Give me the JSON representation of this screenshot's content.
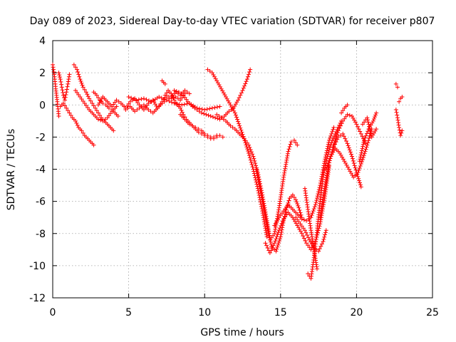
{
  "chart_data": {
    "type": "scatter",
    "title": "Day 089 of 2023, Sidereal Day-to-day VTEC variation (SDTVAR) for receiver p807",
    "xlabel": "GPS time / hours",
    "ylabel": "SDTVAR / TECUs",
    "xlim": [
      0,
      25
    ],
    "ylim": [
      -12,
      4
    ],
    "xticks": [
      0,
      5,
      10,
      15,
      20,
      25
    ],
    "yticks": [
      -12,
      -10,
      -8,
      -6,
      -4,
      -2,
      0,
      2,
      4
    ],
    "grid": true,
    "legend": "none",
    "marker": "plus",
    "color": "#ff0000",
    "tracks": [
      {
        "x": [
          0.0,
          0.1,
          0.2,
          0.3,
          0.4
        ],
        "y": [
          2.5,
          1.9,
          1.0,
          0.2,
          -0.7
        ]
      },
      {
        "x": [
          0.4,
          0.5,
          0.6,
          0.7,
          0.8,
          0.9,
          1.0,
          1.1
        ],
        "y": [
          2.0,
          1.6,
          1.1,
          0.6,
          0.3,
          0.8,
          1.3,
          1.9
        ]
      },
      {
        "x": [
          0.5,
          0.7,
          0.9,
          1.1,
          1.3,
          1.5,
          1.7,
          1.9,
          2.1,
          2.3,
          2.5,
          2.7
        ],
        "y": [
          -0.1,
          0.1,
          -0.2,
          -0.5,
          -0.8,
          -1.0,
          -1.4,
          -1.6,
          -1.9,
          -2.1,
          -2.3,
          -2.5
        ]
      },
      {
        "x": [
          1.4,
          1.6,
          1.8,
          2.0,
          2.2,
          2.4,
          2.6,
          2.8,
          3.0,
          3.2,
          3.4,
          3.6,
          3.8,
          4.0
        ],
        "y": [
          2.5,
          2.2,
          1.6,
          1.1,
          0.8,
          0.4,
          0.1,
          -0.2,
          -0.5,
          -0.8,
          -1.0,
          -1.2,
          -1.4,
          -1.6
        ]
      },
      {
        "x": [
          1.5,
          1.8,
          2.1,
          2.4,
          2.7,
          3.0,
          3.3,
          3.6,
          3.9,
          4.2
        ],
        "y": [
          0.9,
          0.5,
          0.1,
          -0.3,
          -0.6,
          -0.9,
          -1.0,
          -0.8,
          -0.4,
          -0.1
        ]
      },
      {
        "x": [
          2.7,
          2.9,
          3.1,
          3.3,
          3.5,
          3.7,
          3.9,
          4.1,
          4.3
        ],
        "y": [
          0.8,
          0.6,
          0.3,
          0.1,
          0.0,
          -0.2,
          -0.3,
          -0.5,
          -0.7
        ]
      },
      {
        "x": [
          3.0,
          3.3,
          3.6,
          3.9,
          4.2,
          4.5,
          4.8,
          5.1,
          5.4,
          5.7,
          6.0,
          6.3,
          6.6,
          6.9,
          7.2,
          7.5,
          7.8,
          8.1,
          8.4,
          8.7
        ],
        "y": [
          0.0,
          0.5,
          0.2,
          -0.1,
          0.3,
          0.1,
          -0.2,
          0.2,
          0.4,
          0.0,
          -0.3,
          0.1,
          0.3,
          -0.2,
          0.2,
          0.6,
          0.4,
          0.5,
          0.3,
          0.7
        ]
      },
      {
        "x": [
          4.8,
          5.1,
          5.4,
          5.7,
          6.0,
          6.3,
          6.6,
          6.9,
          7.2,
          7.5,
          7.8,
          8.1,
          8.4,
          8.7,
          9.0
        ],
        "y": [
          -0.3,
          -0.1,
          -0.4,
          -0.2,
          0.0,
          -0.3,
          -0.5,
          -0.2,
          0.1,
          0.3,
          0.5,
          0.8,
          0.6,
          0.9,
          0.7
        ]
      },
      {
        "x": [
          5.0,
          5.5,
          6.0,
          6.5,
          7.0,
          7.5,
          8.0,
          8.5,
          9.0,
          9.5,
          10.0,
          10.5,
          11.0
        ],
        "y": [
          0.5,
          0.3,
          0.4,
          0.2,
          0.5,
          0.3,
          0.1,
          0.0,
          0.1,
          -0.2,
          -0.3,
          -0.2,
          -0.1
        ]
      },
      {
        "x": [
          7.2,
          7.4
        ],
        "y": [
          1.5,
          1.3
        ]
      },
      {
        "x": [
          7.4,
          7.6,
          7.8,
          8.0,
          8.2,
          8.4,
          8.6,
          8.8,
          9.0,
          9.2,
          9.4,
          9.6,
          9.8,
          10.0,
          10.2,
          10.4,
          10.6,
          10.8
        ],
        "y": [
          0.6,
          0.9,
          0.7,
          0.3,
          0.0,
          -0.2,
          -0.6,
          -0.9,
          -1.1,
          -1.3,
          -1.5,
          -1.7,
          -1.8,
          -1.9,
          -2.0,
          -2.1,
          -2.0,
          -1.9
        ]
      },
      {
        "x": [
          8.4,
          8.6,
          8.8,
          9.0,
          9.2,
          9.4,
          9.6,
          9.8,
          10.0,
          10.2,
          10.4,
          10.6,
          10.8,
          11.0,
          11.2
        ],
        "y": [
          -0.6,
          -0.8,
          -1.0,
          -1.2,
          -1.3,
          -1.4,
          -1.5,
          -1.6,
          -1.8,
          -1.9,
          -2.0,
          -2.1,
          -2.0,
          -1.9,
          -2.0
        ]
      },
      {
        "x": [
          8.0,
          8.3,
          8.6,
          8.9,
          9.2,
          9.5,
          9.8,
          10.1,
          10.4,
          10.7,
          11.0,
          11.3,
          11.6,
          11.9,
          12.2,
          12.5,
          12.8,
          13.0
        ],
        "y": [
          0.9,
          0.8,
          0.6,
          0.2,
          -0.1,
          -0.3,
          -0.5,
          -0.6,
          -0.7,
          -0.8,
          -0.9,
          -0.7,
          -0.4,
          -0.2,
          0.3,
          0.9,
          1.6,
          2.2
        ]
      },
      {
        "x": [
          10.2,
          10.5,
          10.8,
          11.1,
          11.4,
          11.7,
          12.0,
          12.3,
          12.6,
          12.9,
          13.2,
          13.5,
          13.8,
          14.1
        ],
        "y": [
          2.2,
          2.0,
          1.5,
          1.0,
          0.5,
          0.0,
          -0.5,
          -1.3,
          -2.1,
          -3.0,
          -4.0,
          -5.2,
          -6.6,
          -8.2
        ]
      },
      {
        "x": [
          10.8,
          11.1,
          11.4,
          11.7,
          12.0,
          12.3,
          12.6,
          12.9,
          13.2,
          13.5,
          13.8,
          14.1,
          14.4,
          14.7,
          15.0,
          15.2,
          15.4,
          15.6,
          15.8,
          16.0,
          16.2,
          16.4
        ],
        "y": [
          -0.6,
          -0.8,
          -1.0,
          -1.3,
          -1.5,
          -1.8,
          -2.1,
          -2.5,
          -3.2,
          -4.2,
          -5.6,
          -7.2,
          -8.8,
          -9.1,
          -8.2,
          -7.2,
          -6.4,
          -5.8,
          -5.6,
          -5.9,
          -6.4,
          -7.0
        ]
      },
      {
        "x": [
          13.4,
          13.7,
          14.0,
          14.3,
          14.6,
          14.9,
          15.2,
          15.5,
          15.7,
          15.9,
          16.1
        ],
        "y": [
          -4.0,
          -5.5,
          -7.0,
          -8.4,
          -8.0,
          -6.4,
          -4.5,
          -2.9,
          -2.3,
          -2.2,
          -2.5
        ]
      },
      {
        "x": [
          14.0,
          14.3,
          14.6,
          14.9,
          15.2,
          15.5,
          15.8,
          16.1,
          16.4,
          16.7,
          17.0,
          17.3,
          17.6,
          17.9,
          18.2
        ],
        "y": [
          -8.6,
          -9.2,
          -8.6,
          -7.8,
          -7.1,
          -6.7,
          -7.0,
          -7.5,
          -8.0,
          -8.6,
          -9.0,
          -8.5,
          -7.4,
          -5.8,
          -3.8
        ]
      },
      {
        "x": [
          14.6,
          14.9,
          15.2,
          15.5,
          15.8,
          16.1,
          16.4,
          16.7,
          17.0,
          17.3,
          17.6,
          17.9,
          18.2,
          18.5
        ],
        "y": [
          -7.5,
          -7.0,
          -6.6,
          -6.2,
          -6.5,
          -6.8,
          -7.1,
          -7.2,
          -7.0,
          -6.2,
          -5.0,
          -3.5,
          -2.2,
          -1.4
        ]
      },
      {
        "x": [
          16.0,
          16.3,
          16.6,
          16.9,
          17.2,
          17.5,
          17.8,
          18.0
        ],
        "y": [
          -7.0,
          -7.4,
          -7.8,
          -8.4,
          -8.9,
          -9.1,
          -8.5,
          -7.8
        ]
      },
      {
        "x": [
          16.6,
          16.8,
          17.0,
          17.2,
          17.4
        ],
        "y": [
          -5.2,
          -6.5,
          -7.8,
          -9.0,
          -10.2
        ]
      },
      {
        "x": [
          16.8,
          17.0,
          17.2,
          17.4,
          17.6,
          17.8,
          18.0,
          18.2,
          18.4,
          18.6,
          18.8,
          19.0
        ],
        "y": [
          -10.5,
          -10.8,
          -9.5,
          -7.8,
          -6.0,
          -4.5,
          -3.5,
          -2.8,
          -2.2,
          -1.8,
          -1.4,
          -1.0
        ]
      },
      {
        "x": [
          17.6,
          17.9,
          18.2,
          18.5,
          18.8,
          19.1,
          19.4,
          19.7,
          20.0,
          20.3,
          20.6
        ],
        "y": [
          -7.0,
          -5.2,
          -3.6,
          -2.5,
          -1.6,
          -1.0,
          -0.6,
          -0.7,
          -1.2,
          -1.8,
          -2.4
        ]
      },
      {
        "x": [
          18.0,
          18.3,
          18.6,
          18.9,
          19.2,
          19.5,
          19.8,
          20.1,
          20.4,
          20.7,
          21.0
        ],
        "y": [
          -4.0,
          -3.2,
          -2.7,
          -3.0,
          -3.5,
          -4.0,
          -4.5,
          -4.2,
          -3.4,
          -2.5,
          -1.5
        ]
      },
      {
        "x": [
          18.5,
          18.8,
          19.1,
          19.4,
          19.7,
          20.0,
          20.3
        ],
        "y": [
          -2.6,
          -2.0,
          -1.8,
          -2.4,
          -3.2,
          -4.2,
          -5.1
        ]
      },
      {
        "x": [
          19.0,
          19.2,
          19.4
        ],
        "y": [
          -0.5,
          -0.2,
          0.0
        ]
      },
      {
        "x": [
          20.2,
          20.5,
          20.8,
          21.1,
          21.3
        ],
        "y": [
          -3.5,
          -2.2,
          -1.5,
          -1.0,
          -0.5
        ]
      },
      {
        "x": [
          20.4,
          20.7,
          21.0,
          21.3
        ],
        "y": [
          -1.2,
          -0.8,
          -2.0,
          -1.5
        ]
      },
      {
        "x": [
          22.6,
          22.7
        ],
        "y": [
          1.3,
          1.1
        ]
      },
      {
        "x": [
          22.6,
          22.7,
          22.8,
          22.9,
          23.0
        ],
        "y": [
          -0.3,
          -0.8,
          -1.4,
          -1.9,
          -1.6
        ]
      },
      {
        "x": [
          22.8,
          22.9,
          23.0
        ],
        "y": [
          0.2,
          0.4,
          0.5
        ]
      }
    ]
  }
}
